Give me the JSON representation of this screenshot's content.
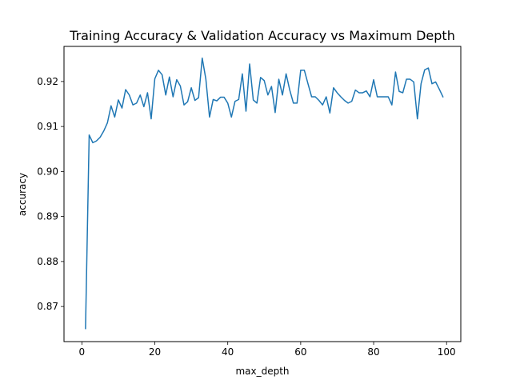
{
  "chart_data": {
    "type": "line",
    "title": "Training Accuracy & Validation Accuracy vs Maximum Depth",
    "xlabel": "max_depth",
    "ylabel": "accuracy",
    "xlim": [
      -4.9,
      103.9
    ],
    "ylim": [
      0.8622,
      0.9278
    ],
    "xticks": [
      0,
      20,
      40,
      60,
      80,
      100
    ],
    "yticks": [
      0.87,
      0.88,
      0.89,
      0.9,
      0.91,
      0.92
    ],
    "ytick_labels": [
      "0.87",
      "0.88",
      "0.89",
      "0.90",
      "0.91",
      "0.92"
    ],
    "grid": false,
    "series": [
      {
        "color": "#1f77b4",
        "x": [
          1,
          2,
          3,
          4,
          5,
          6,
          7,
          8,
          9,
          10,
          11,
          12,
          13,
          14,
          15,
          16,
          17,
          18,
          19,
          20,
          21,
          22,
          23,
          24,
          25,
          26,
          27,
          28,
          29,
          30,
          31,
          32,
          33,
          34,
          35,
          36,
          37,
          38,
          39,
          40,
          41,
          42,
          43,
          44,
          45,
          46,
          47,
          48,
          49,
          50,
          51,
          52,
          53,
          54,
          55,
          56,
          57,
          58,
          59,
          60,
          61,
          62,
          63,
          64,
          65,
          66,
          67,
          68,
          69,
          70,
          71,
          72,
          73,
          74,
          75,
          76,
          77,
          78,
          79,
          80,
          81,
          82,
          83,
          84,
          85,
          86,
          87,
          88,
          89,
          90,
          91,
          92,
          93,
          94,
          95,
          96,
          97,
          98,
          99
        ],
        "y": [
          0.8651,
          0.9081,
          0.9064,
          0.9068,
          0.9076,
          0.909,
          0.9108,
          0.9146,
          0.9121,
          0.9159,
          0.9141,
          0.9182,
          0.917,
          0.9148,
          0.9152,
          0.917,
          0.9144,
          0.9175,
          0.9117,
          0.9206,
          0.9225,
          0.9215,
          0.917,
          0.921,
          0.9166,
          0.9204,
          0.919,
          0.9148,
          0.9155,
          0.9186,
          0.9158,
          0.9164,
          0.9252,
          0.9205,
          0.9121,
          0.916,
          0.9157,
          0.9165,
          0.9165,
          0.9152,
          0.9121,
          0.9156,
          0.916,
          0.9217,
          0.9134,
          0.9239,
          0.9159,
          0.9152,
          0.9209,
          0.9202,
          0.917,
          0.9189,
          0.9131,
          0.9205,
          0.917,
          0.9217,
          0.9181,
          0.9152,
          0.9152,
          0.9225,
          0.9225,
          0.9195,
          0.9166,
          0.9166,
          0.9158,
          0.9148,
          0.9166,
          0.913,
          0.9186,
          0.9175,
          0.9166,
          0.9158,
          0.9152,
          0.9156,
          0.9181,
          0.9175,
          0.9175,
          0.9179,
          0.9166,
          0.9204,
          0.9166,
          0.9166,
          0.9166,
          0.9166,
          0.9148,
          0.9221,
          0.9178,
          0.9175,
          0.9205,
          0.9205,
          0.9199,
          0.9117,
          0.9195,
          0.9226,
          0.923,
          0.9195,
          0.9199,
          0.9183,
          0.9166
        ]
      }
    ]
  }
}
